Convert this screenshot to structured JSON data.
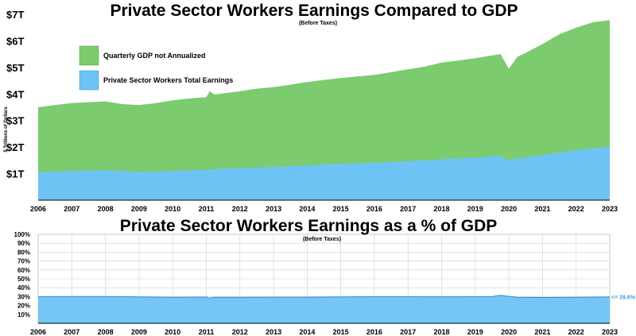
{
  "chart_data": [
    {
      "type": "area",
      "title": "Private Sector Workers Earnings Compared to GDP",
      "subtitle": "(Before Taxes)",
      "ylabel": "$ Trillions of Dollars",
      "xlabel": "",
      "ylim": [
        0,
        7
      ],
      "xlim": [
        2006,
        2023
      ],
      "y_ticks": [
        "$1T",
        "$2T",
        "$3T",
        "$4T",
        "$5T",
        "$6T",
        "$7T"
      ],
      "x_ticks": [
        "2006",
        "2007",
        "2008",
        "2009",
        "2010",
        "2011",
        "2012",
        "2013",
        "2014",
        "2015",
        "2016",
        "2017",
        "2018",
        "2019",
        "2020",
        "2021",
        "2022",
        "2023"
      ],
      "legend": {
        "position": "top-left"
      },
      "x": [
        2006.0,
        2006.5,
        2007.0,
        2007.5,
        2008.0,
        2008.5,
        2009.0,
        2009.5,
        2010.0,
        2010.5,
        2011.0,
        2011.1,
        2011.25,
        2011.5,
        2012.0,
        2012.5,
        2013.0,
        2013.5,
        2014.0,
        2014.5,
        2015.0,
        2015.5,
        2016.0,
        2016.5,
        2017.0,
        2017.5,
        2018.0,
        2018.5,
        2019.0,
        2019.5,
        2019.75,
        2020.0,
        2020.25,
        2020.5,
        2021.0,
        2021.5,
        2022.0,
        2022.5,
        2023.0
      ],
      "series": [
        {
          "name": "Quarterly GDP not Annualized",
          "color": "#7ccb6f",
          "values": [
            3.5,
            3.58,
            3.66,
            3.69,
            3.72,
            3.62,
            3.58,
            3.66,
            3.76,
            3.83,
            3.88,
            4.1,
            3.98,
            4.02,
            4.1,
            4.2,
            4.26,
            4.35,
            4.45,
            4.53,
            4.6,
            4.66,
            4.72,
            4.82,
            4.93,
            5.03,
            5.18,
            5.26,
            5.35,
            5.45,
            5.5,
            4.95,
            5.4,
            5.55,
            5.88,
            6.25,
            6.5,
            6.7,
            6.78
          ]
        },
        {
          "name": "Private Sector Workers Total Earnings",
          "color": "#6ec3f5",
          "values": [
            1.05,
            1.08,
            1.1,
            1.12,
            1.13,
            1.1,
            1.06,
            1.08,
            1.1,
            1.12,
            1.15,
            1.16,
            1.17,
            1.19,
            1.2,
            1.23,
            1.25,
            1.28,
            1.31,
            1.34,
            1.37,
            1.39,
            1.41,
            1.44,
            1.47,
            1.5,
            1.54,
            1.57,
            1.6,
            1.64,
            1.66,
            1.5,
            1.57,
            1.61,
            1.7,
            1.8,
            1.88,
            1.95,
            2.0
          ]
        }
      ]
    },
    {
      "type": "area",
      "title": "Private Sector Workers Earnings as a % of GDP",
      "subtitle": "(Before Taxes)",
      "xlabel": "",
      "ylabel": "",
      "ylim": [
        0,
        100
      ],
      "xlim": [
        2006,
        2023
      ],
      "grid": true,
      "y_ticks": [
        "10%",
        "20%",
        "30%",
        "40%",
        "50%",
        "60%",
        "70%",
        "80%",
        "90%",
        "100%"
      ],
      "x_ticks": [
        "2006",
        "2007",
        "2008",
        "2009",
        "2010",
        "2011",
        "2012",
        "2013",
        "2014",
        "2015",
        "2016",
        "2017",
        "2018",
        "2019",
        "2020",
        "2021",
        "2022",
        "2023"
      ],
      "annotation": "<= 29.6%",
      "x": [
        2006.0,
        2007.0,
        2008.0,
        2009.0,
        2010.0,
        2011.0,
        2011.1,
        2011.25,
        2012.0,
        2013.0,
        2014.0,
        2015.0,
        2016.0,
        2017.0,
        2018.0,
        2019.0,
        2019.5,
        2019.75,
        2020.0,
        2020.25,
        2021.0,
        2022.0,
        2023.0
      ],
      "series": [
        {
          "name": "",
          "color": "#6ec3f5",
          "values": [
            30.0,
            30.1,
            30.2,
            29.6,
            29.3,
            29.5,
            28.3,
            29.2,
            29.3,
            29.4,
            29.4,
            29.7,
            29.9,
            29.9,
            29.8,
            29.9,
            30.1,
            31.5,
            30.3,
            29.2,
            29.0,
            29.3,
            29.6
          ]
        }
      ]
    }
  ]
}
